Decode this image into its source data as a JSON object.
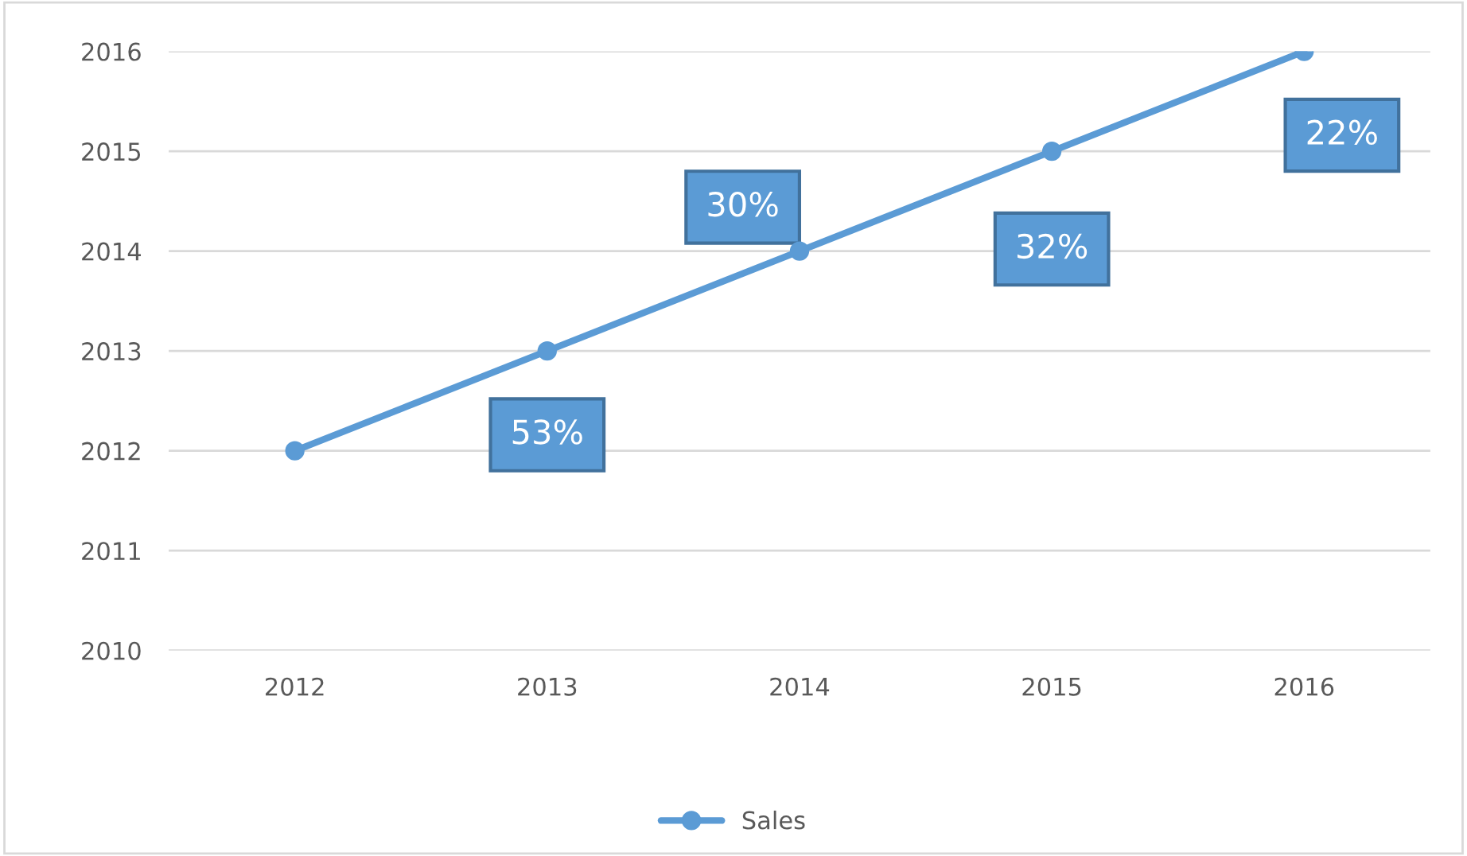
{
  "chart_data": {
    "type": "line",
    "categories": [
      "2012",
      "2013",
      "2014",
      "2015",
      "2016"
    ],
    "series": [
      {
        "name": "Sales",
        "color": "#5b9bd5",
        "values": [
          2012,
          2013,
          2014,
          2015,
          2016
        ]
      }
    ],
    "ylim": [
      2010,
      2016
    ],
    "yticks": [
      2010,
      2011,
      2012,
      2013,
      2014,
      2015,
      2016
    ],
    "grid": "y",
    "legend": "bottom",
    "marker": "circle",
    "line_style": "solid",
    "annotations": [
      "53%",
      "30%",
      "32%",
      "22%"
    ]
  }
}
